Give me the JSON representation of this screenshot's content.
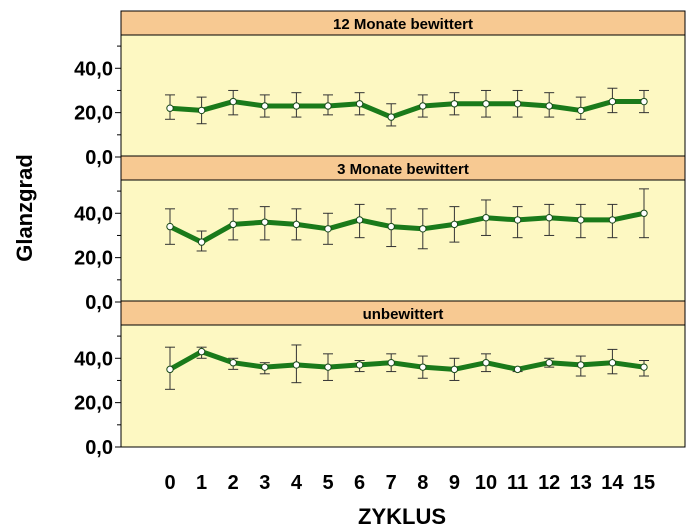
{
  "chart_data": {
    "type": "line",
    "panels": [
      {
        "title": "12 Monate bewittert",
        "x": [
          0,
          1,
          2,
          3,
          4,
          5,
          6,
          7,
          8,
          9,
          10,
          11,
          12,
          13,
          14,
          15
        ],
        "values": [
          22,
          21,
          25,
          23,
          23,
          23,
          24,
          18,
          23,
          24,
          24,
          24,
          23,
          21,
          25,
          25
        ],
        "error_low": [
          17,
          15,
          19,
          18,
          18,
          19,
          19,
          14,
          18,
          19,
          18,
          18,
          18,
          17,
          20,
          20
        ],
        "error_high": [
          28,
          27,
          30,
          28,
          29,
          28,
          29,
          24,
          28,
          29,
          30,
          30,
          29,
          27,
          31,
          30
        ]
      },
      {
        "title": "3 Monate bewittert",
        "x": [
          0,
          1,
          2,
          3,
          4,
          5,
          6,
          7,
          8,
          9,
          10,
          11,
          12,
          13,
          14,
          15
        ],
        "values": [
          34,
          27,
          35,
          36,
          35,
          33,
          37,
          34,
          33,
          35,
          38,
          37,
          38,
          37,
          37,
          40
        ],
        "error_low": [
          26,
          23,
          28,
          28,
          28,
          26,
          29,
          25,
          24,
          27,
          30,
          29,
          30,
          29,
          29,
          29
        ],
        "error_high": [
          42,
          32,
          42,
          43,
          42,
          40,
          44,
          42,
          42,
          43,
          46,
          43,
          44,
          44,
          44,
          51
        ]
      },
      {
        "title": "unbewittert",
        "x": [
          0,
          1,
          2,
          3,
          4,
          5,
          6,
          7,
          8,
          9,
          10,
          11,
          12,
          13,
          14,
          15
        ],
        "values": [
          35,
          43,
          38,
          36,
          37,
          36,
          37,
          38,
          36,
          35,
          38,
          35,
          38,
          37,
          38,
          36
        ],
        "error_low": [
          26,
          40,
          35,
          33,
          29,
          30,
          34,
          34,
          31,
          30,
          34,
          34,
          36,
          32,
          33,
          32
        ],
        "error_high": [
          45,
          45,
          40,
          38,
          46,
          42,
          39,
          42,
          41,
          40,
          42,
          36,
          40,
          41,
          44,
          39
        ]
      }
    ],
    "xlabel": "ZYKLUS",
    "ylabel": "Glanzgrad",
    "ylim": [
      0,
      55
    ],
    "yticks": [
      "0,0",
      "20,0",
      "40,0"
    ],
    "ytick_values": [
      0,
      20,
      40
    ],
    "xticks": [
      "0",
      "1",
      "2",
      "3",
      "4",
      "5",
      "6",
      "7",
      "8",
      "9",
      "10",
      "11",
      "12",
      "13",
      "14",
      "15"
    ],
    "grid": false,
    "colors": {
      "line": "#1a7a1a",
      "plot_background": "#fdf8c2",
      "strip_background": "#f7c992",
      "marker_fill": "#ffffff",
      "error_bar": "#333333"
    }
  }
}
